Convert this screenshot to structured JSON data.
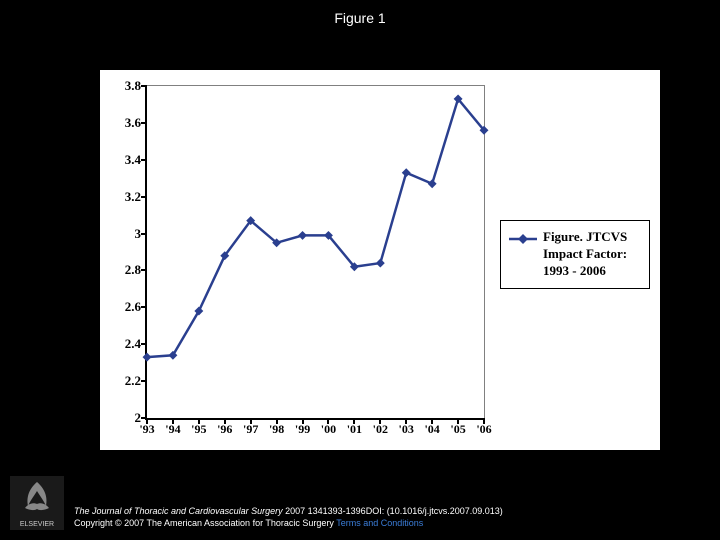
{
  "figure_title": "Figure 1",
  "chart": {
    "type": "line",
    "background_color": "#ffffff",
    "line_color": "#2a3f8f",
    "marker_color": "#2a3f8f",
    "marker_shape": "diamond",
    "marker_size": 9,
    "line_width": 2.5,
    "ylim": [
      2,
      3.8
    ],
    "ytick_step": 0.2,
    "yticks": [
      "2",
      "2.2",
      "2.4",
      "2.6",
      "2.8",
      "3",
      "3.2",
      "3.4",
      "3.6",
      "3.8"
    ],
    "xticks": [
      "'93",
      "'94",
      "'95",
      "'96",
      "'97",
      "'98",
      "'99",
      "'00",
      "'01",
      "'02",
      "'03",
      "'04",
      "'05",
      "'06"
    ],
    "values": [
      2.33,
      2.34,
      2.58,
      2.88,
      3.07,
      2.95,
      2.99,
      2.99,
      2.82,
      2.84,
      3.33,
      3.27,
      3.73,
      3.56
    ],
    "axis_color": "#000000",
    "grid": false,
    "tick_font": {
      "family": "Times New Roman",
      "weight": "bold",
      "size_pt": 13
    }
  },
  "legend": {
    "label": "Figure. JTCVS Impact Factor: 1993 - 2006",
    "marker_color": "#2a3f8f",
    "border_color": "#000000"
  },
  "footer": {
    "citation_italic": "The Journal of Thoracic and Cardiovascular Surgery",
    "citation_rest": " 2007 1341393-1396DOI: (10.1016/j.jtcvs.2007.09.013)",
    "copyright": "Copyright © 2007 The American Association for Thoracic Surgery ",
    "terms_link": "Terms and Conditions",
    "publisher": "ELSEVIER"
  },
  "colors": {
    "page_bg": "#000000",
    "chart_bg": "#ffffff",
    "text_light": "#ffffff",
    "link": "#3b7dd8"
  }
}
